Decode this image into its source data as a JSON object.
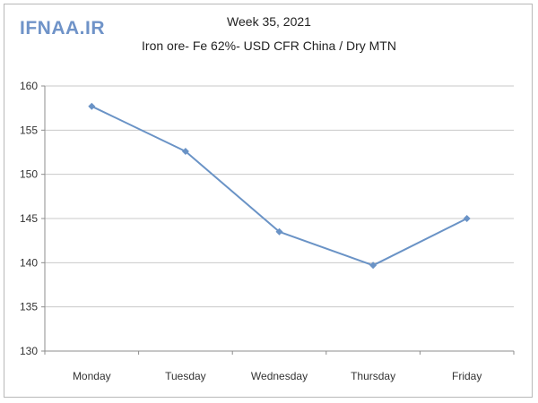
{
  "watermark": "IFNAA.IR",
  "colors": {
    "line": "#6a93c6",
    "grid": "#c9c9c9",
    "axis": "#8c8c8c"
  },
  "chart_data": {
    "type": "line",
    "title": "Week 35, 2021",
    "subtitle": "Iron ore- Fe 62%- USD CFR China / Dry MTN",
    "categories": [
      "Monday",
      "Tuesday",
      "Wednesday",
      "Thursday",
      "Friday"
    ],
    "series": [
      {
        "values": [
          157.7,
          152.6,
          143.5,
          139.7,
          145.0
        ]
      }
    ],
    "ylim": [
      130,
      160
    ],
    "yticks": [
      130,
      135,
      140,
      145,
      150,
      155,
      160
    ],
    "grid": true,
    "legend": "none",
    "markers": "diamond"
  }
}
